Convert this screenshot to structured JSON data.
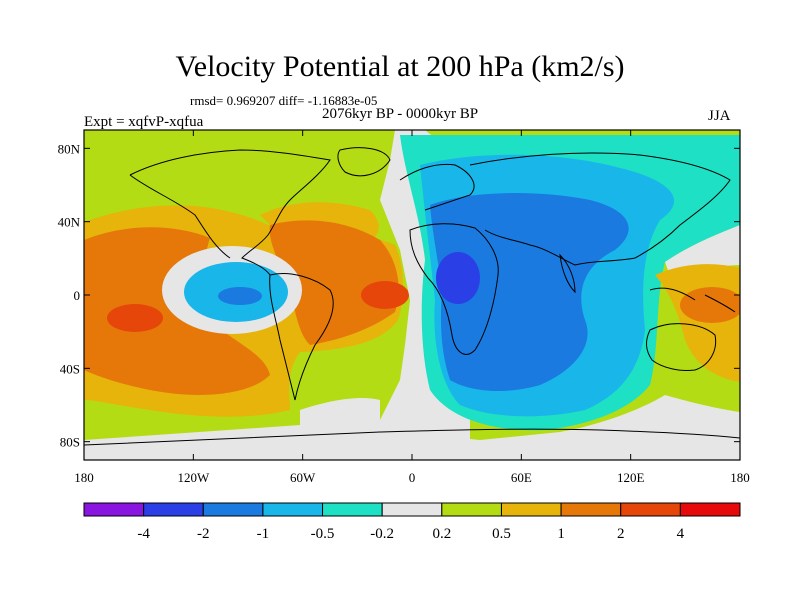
{
  "chart_data": {
    "type": "heatmap",
    "title": "Velocity Potential at 200 hPa (km2/s)",
    "stats_text": "rmsd= 0.969207 diff= -1.16883e-05",
    "period_text": "2076kyr BP - 0000kyr BP",
    "experiment_text": "Expt = xqfvP-xqfua",
    "season": "JJA",
    "x_ticks": [
      "180",
      "120W",
      "60W",
      "0",
      "60E",
      "120E",
      "180"
    ],
    "y_ticks": [
      "80N",
      "40N",
      "0",
      "40S",
      "80S"
    ],
    "xlim": [
      -180,
      180
    ],
    "ylim": [
      -90,
      90
    ],
    "colorbar": {
      "levels": [
        "-4",
        "-2",
        "-1",
        "-0.5",
        "-0.2",
        "0.2",
        "0.5",
        "1",
        "2",
        "4"
      ],
      "colors": [
        "#8a14e0",
        "#2a3fe6",
        "#1a7ae0",
        "#19b6ea",
        "#1ee0c4",
        "#e6e6e6",
        "#b4dc14",
        "#e6b40a",
        "#e6780a",
        "#e6460a",
        "#e60a0a"
      ]
    },
    "field_regions": [
      {
        "name": "africa-indian-ocean-low",
        "level_range": "-1 to -0.5",
        "center_lon": 50,
        "center_lat": 0
      },
      {
        "name": "central-africa-min",
        "level_range": "-4 to -2",
        "center_lon": 25,
        "center_lat": 10
      },
      {
        "name": "east-pacific-low",
        "level_range": "-2 to -1",
        "center_lon": -95,
        "center_lat": 0
      },
      {
        "name": "tropical-atlantic-high",
        "level_range": "2 to 4",
        "center_lon": -15,
        "center_lat": 0
      },
      {
        "name": "south-pacific-high",
        "level_range": "2 to 4",
        "center_lon": -150,
        "center_lat": -10
      },
      {
        "name": "west-pacific-high",
        "level_range": "1 to 2",
        "center_lon": 150,
        "center_lat": 0
      }
    ]
  }
}
